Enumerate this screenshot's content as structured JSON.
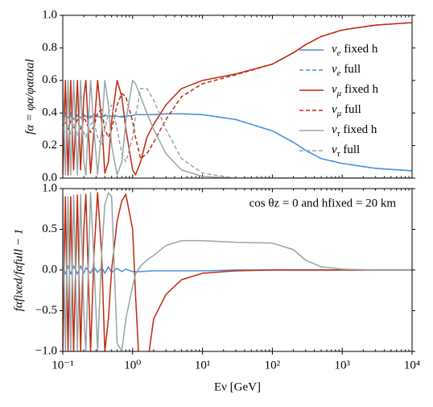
{
  "chart_data": [
    {
      "type": "line",
      "log_x": true,
      "legend": "center right",
      "ylabel": "fα = φα/φαtotal",
      "x": [
        0.1,
        0.109,
        0.119,
        0.13,
        0.143,
        0.162,
        0.18,
        0.2,
        0.214,
        0.25,
        0.28,
        0.315,
        0.36,
        0.4,
        0.45,
        0.5,
        0.6,
        0.7,
        0.8,
        1.0,
        1.1,
        1.3,
        1.6,
        2,
        3,
        5,
        10,
        30,
        100,
        200,
        300,
        500,
        1000,
        3000,
        10000
      ],
      "series": [
        {
          "name": "νe fixed h",
          "color": "#4a90d9",
          "dash": false,
          "values": [
            0.38,
            0.4,
            0.37,
            0.4,
            0.36,
            0.39,
            0.37,
            0.39,
            0.38,
            0.37,
            0.39,
            0.38,
            0.37,
            0.39,
            0.38,
            0.38,
            0.38,
            0.375,
            0.38,
            0.385,
            0.39,
            0.39,
            0.39,
            0.39,
            0.395,
            0.395,
            0.39,
            0.36,
            0.29,
            0.22,
            0.17,
            0.12,
            0.09,
            0.06,
            0.045
          ]
        },
        {
          "name": "νe full",
          "color": "#4a90d9",
          "dash": true,
          "values": [
            0.38,
            0.38,
            0.38,
            0.38,
            0.38,
            0.38,
            0.38,
            0.38,
            0.38,
            0.38,
            0.38,
            0.38,
            0.38,
            0.38,
            0.38,
            0.38,
            0.38,
            0.38,
            0.38,
            0.385,
            0.39,
            0.39,
            0.39,
            0.39,
            0.395,
            0.395,
            0.39,
            0.36,
            0.29,
            0.22,
            0.17,
            0.12,
            0.09,
            0.06,
            0.045
          ]
        },
        {
          "name": "νμ fixed h",
          "color": "#c0280e",
          "dash": false,
          "values": [
            0.02,
            0.6,
            0.02,
            0.6,
            0.05,
            0.6,
            0.05,
            0.5,
            0.6,
            0.03,
            0.3,
            0.6,
            0.35,
            0.03,
            0.1,
            0.35,
            0.6,
            0.5,
            0.3,
            0.05,
            0.02,
            0.1,
            0.25,
            0.33,
            0.45,
            0.55,
            0.6,
            0.64,
            0.7,
            0.77,
            0.82,
            0.87,
            0.91,
            0.94,
            0.955
          ]
        },
        {
          "name": "νμ full",
          "color": "#c0280e",
          "dash": true,
          "values": [
            0.32,
            0.35,
            0.3,
            0.35,
            0.3,
            0.36,
            0.3,
            0.37,
            0.35,
            0.28,
            0.32,
            0.4,
            0.42,
            0.3,
            0.25,
            0.3,
            0.45,
            0.52,
            0.5,
            0.35,
            0.25,
            0.12,
            0.15,
            0.22,
            0.36,
            0.5,
            0.58,
            0.635,
            0.7,
            0.77,
            0.82,
            0.87,
            0.91,
            0.94,
            0.955
          ]
        },
        {
          "name": "ντ fixed h",
          "color": "#95a5a6",
          "dash": false,
          "values": [
            0.6,
            0.02,
            0.6,
            0.02,
            0.6,
            0.02,
            0.6,
            0.1,
            0.02,
            0.6,
            0.3,
            0.02,
            0.3,
            0.6,
            0.45,
            0.2,
            0.02,
            0.1,
            0.35,
            0.6,
            0.58,
            0.5,
            0.4,
            0.3,
            0.15,
            0.05,
            0.01,
            0,
            0,
            0,
            0,
            0,
            0,
            0,
            0
          ]
        },
        {
          "name": "ντ full",
          "color": "#95a5a6",
          "dash": true,
          "values": [
            0.3,
            0.28,
            0.33,
            0.27,
            0.33,
            0.26,
            0.33,
            0.28,
            0.25,
            0.33,
            0.35,
            0.25,
            0.2,
            0.3,
            0.4,
            0.45,
            0.3,
            0.15,
            0.1,
            0.25,
            0.38,
            0.55,
            0.55,
            0.48,
            0.3,
            0.12,
            0.03,
            0,
            0,
            0,
            0,
            0,
            0,
            0,
            0
          ]
        }
      ],
      "xlim": [
        0.1,
        10000
      ],
      "ylim": [
        0,
        1
      ],
      "yticks": [
        {
          "value": 0,
          "label": "0.0"
        },
        {
          "value": 0.2,
          "label": "0.2"
        },
        {
          "value": 0.4,
          "label": "0.4"
        },
        {
          "value": 0.6,
          "label": "0.6"
        },
        {
          "value": 0.8,
          "label": "0.8"
        },
        {
          "value": 1,
          "label": "1.0"
        }
      ]
    },
    {
      "type": "line",
      "log_x": true,
      "ylabel": "fαfixed/fαfull − 1",
      "xlabel": "Eν [GeV]",
      "annotation": "cos θz = 0 and hfixed = 20 km",
      "x": [
        0.1,
        0.109,
        0.119,
        0.13,
        0.143,
        0.162,
        0.18,
        0.2,
        0.214,
        0.25,
        0.28,
        0.315,
        0.36,
        0.4,
        0.45,
        0.5,
        0.6,
        0.7,
        0.8,
        1.0,
        1.1,
        1.3,
        1.6,
        2,
        3,
        5,
        10,
        30,
        100,
        200,
        300,
        500,
        1000,
        3000,
        10000
      ],
      "series": [
        {
          "color": "#4a90d9",
          "values": [
            0.05,
            -0.05,
            0.05,
            -0.05,
            0.05,
            -0.05,
            0.05,
            -0.04,
            0.03,
            -0.04,
            0.04,
            -0.03,
            0.03,
            -0.04,
            0.04,
            -0.03,
            0.02,
            -0.02,
            0.01,
            -0.02,
            -0.02,
            -0.02,
            -0.015,
            -0.01,
            -0.01,
            -0.01,
            -0.01,
            0,
            0,
            0,
            0,
            0,
            0,
            0,
            0
          ]
        },
        {
          "color": "#c0280e",
          "values": [
            -1,
            0.9,
            -1,
            0.9,
            -1,
            0.92,
            -1,
            0.5,
            0.93,
            -1,
            0.2,
            0.95,
            0.2,
            -1,
            -0.6,
            0,
            0.6,
            0.85,
            0.93,
            0.5,
            -0.3,
            -1.5,
            -1.2,
            -0.6,
            -0.3,
            -0.12,
            -0.04,
            -0.01,
            0,
            0,
            0,
            0,
            0,
            0,
            0
          ]
        },
        {
          "color": "#95a5a6",
          "values": [
            0.9,
            -1,
            0.9,
            -1,
            0.92,
            -1,
            0.93,
            -0.5,
            -1,
            0.95,
            0.1,
            -1,
            0.2,
            0.8,
            0.95,
            0.9,
            -0.9,
            -1,
            -0.6,
            -0.2,
            -0.05,
            0.05,
            0.12,
            0.18,
            0.3,
            0.36,
            0.36,
            0.34,
            0.33,
            0.25,
            0.12,
            0.04,
            0.01,
            0,
            0
          ]
        }
      ],
      "xlim": [
        0.1,
        10000
      ],
      "ylim": [
        -1,
        1
      ],
      "xticks": [
        {
          "value": 0.1,
          "label": "10⁻¹"
        },
        {
          "value": 1,
          "label": "10⁰"
        },
        {
          "value": 10,
          "label": "10¹"
        },
        {
          "value": 100,
          "label": "10²"
        },
        {
          "value": 1000,
          "label": "10³"
        },
        {
          "value": 10000,
          "label": "10⁴"
        }
      ],
      "yticks": [
        {
          "value": -1,
          "label": "−1.0"
        },
        {
          "value": -0.5,
          "label": "−0.5"
        },
        {
          "value": 0,
          "label": "0.0"
        },
        {
          "value": 0.5,
          "label": "0.5"
        },
        {
          "value": 1,
          "label": "1.0"
        }
      ]
    }
  ]
}
